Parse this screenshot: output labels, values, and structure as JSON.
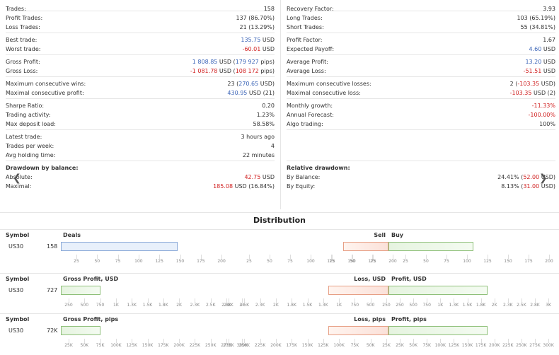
{
  "stats_left": [
    [
      {
        "label": "Trades:",
        "value": "158"
      }
    ],
    [
      {
        "label": "Profit Trades:",
        "value": "137 (86.70%)"
      },
      {
        "label": "Loss Trades:",
        "value": "21 (13.29%)"
      }
    ],
    [
      {
        "label": "Best trade:",
        "value": "135.75",
        "unit": " USD",
        "color": "blue"
      },
      {
        "label": "Worst trade:",
        "value": "-60.01",
        "unit": " USD",
        "color": "red"
      }
    ],
    [
      {
        "label": "Gross Profit:",
        "value_parts": [
          {
            "t": "1 808.85",
            "c": "blue"
          },
          {
            "t": " USD (",
            "c": ""
          },
          {
            "t": "179 927",
            "c": "blue"
          },
          {
            "t": " pips)",
            "c": ""
          }
        ]
      },
      {
        "label": "Gross Loss:",
        "value_parts": [
          {
            "t": "-1 081.78",
            "c": "red"
          },
          {
            "t": " USD (",
            "c": ""
          },
          {
            "t": "108 172",
            "c": "red"
          },
          {
            "t": " pips)",
            "c": ""
          }
        ]
      }
    ],
    [
      {
        "label": "Maximum consecutive wins:",
        "value_parts": [
          {
            "t": "23 (",
            "c": ""
          },
          {
            "t": "270.65",
            "c": "blue"
          },
          {
            "t": " USD)",
            "c": ""
          }
        ]
      },
      {
        "label": "Maximal consecutive profit:",
        "value_parts": [
          {
            "t": "430.95",
            "c": "blue"
          },
          {
            "t": " USD (21)",
            "c": ""
          }
        ]
      }
    ],
    [
      {
        "label": "Sharpe Ratio:",
        "value": "0.20"
      },
      {
        "label": "Trading activity:",
        "value": "1.23%"
      },
      {
        "label": "Max deposit load:",
        "value": "58.58%"
      }
    ],
    [
      {
        "label": "Latest trade:",
        "value": "3 hours ago"
      },
      {
        "label": "Trades per week:",
        "value": "4"
      },
      {
        "label": "Avg holding time:",
        "value": "22 minutes"
      }
    ],
    [
      {
        "label": "Drawdown by balance:",
        "value": "",
        "bold": true
      },
      {
        "label": "Absolute:",
        "value": "42.75",
        "unit": " USD",
        "color": "red"
      },
      {
        "label": "Maximal:",
        "value_parts": [
          {
            "t": "185.08",
            "c": "red"
          },
          {
            "t": " USD (16.84%)",
            "c": ""
          }
        ]
      }
    ]
  ],
  "stats_right": [
    [
      {
        "label": "Recovery Factor:",
        "value": "3.93"
      }
    ],
    [
      {
        "label": "Long Trades:",
        "value": "103 (65.19%)"
      },
      {
        "label": "Short Trades:",
        "value": "55 (34.81%)"
      }
    ],
    [
      {
        "label": "Profit Factor:",
        "value": "1.67"
      },
      {
        "label": "Expected Payoff:",
        "value": "4.60",
        "unit": " USD",
        "color": "blue"
      }
    ],
    [
      {
        "label": "Average Profit:",
        "value": "13.20",
        "unit": " USD",
        "color": "blue"
      },
      {
        "label": "Average Loss:",
        "value": "-51.51",
        "unit": " USD",
        "color": "red"
      }
    ],
    [
      {
        "label": "Maximum consecutive losses:",
        "value_parts": [
          {
            "t": "2 (",
            "c": ""
          },
          {
            "t": "-103.35",
            "c": "red"
          },
          {
            "t": " USD)",
            "c": ""
          }
        ]
      },
      {
        "label": "Maximal consecutive loss:",
        "value_parts": [
          {
            "t": "-103.35",
            "c": "red"
          },
          {
            "t": " USD (2)",
            "c": ""
          }
        ]
      }
    ],
    [
      {
        "label": "Monthly growth:",
        "value": "-11.33%",
        "color": "red"
      },
      {
        "label": "Annual Forecast:",
        "value": "-100.00%",
        "color": "red"
      },
      {
        "label": "Algo trading:",
        "value": "100%"
      }
    ],
    [],
    [
      {
        "label": "Relative drawdown:",
        "value": "",
        "bold": true
      },
      {
        "label": "By Balance:",
        "value_parts": [
          {
            "t": "24.41% (",
            "c": ""
          },
          {
            "t": "52.00",
            "c": "red"
          },
          {
            "t": " USD)",
            "c": ""
          }
        ]
      },
      {
        "label": "By Equity:",
        "value_parts": [
          {
            "t": "8.13% (",
            "c": ""
          },
          {
            "t": "31.00",
            "c": "red"
          },
          {
            "t": " USD)",
            "c": ""
          }
        ]
      }
    ]
  ],
  "distribution": {
    "title": "Distribution",
    "sections": [
      {
        "symbol_header": "Symbol",
        "symbol": "US30",
        "total": "158",
        "left_label": "Deals",
        "left_value": 158,
        "right_left_label": "Sell",
        "right_right_label": "Buy",
        "sell_value": 55,
        "buy_value": 103,
        "left_ticks": [
          "25",
          "50",
          "75",
          "100",
          "125",
          "150",
          "175",
          "200"
        ],
        "right_neg_ticks": [
          "75",
          "50",
          "25"
        ],
        "mid_ticks_left": [
          "200",
          "25",
          "50",
          "75",
          "100",
          "125",
          "150",
          "175",
          "200"
        ],
        "right_pos_ticks": [
          "25",
          "50",
          "75",
          "100",
          "125",
          "150",
          "175",
          "200"
        ]
      },
      {
        "symbol_header": "Symbol",
        "symbol": "US30",
        "total": "727",
        "left_label": "Gross Profit, USD",
        "left_value": 727,
        "right_left_label": "Loss, USD",
        "right_right_label": "Profit, USD",
        "left_ticks": [
          "250",
          "500",
          "750",
          "1K",
          "1.3K",
          "1.5K",
          "1.8K",
          "2K",
          "2.3K",
          "2.5K",
          "2.8K",
          "3K"
        ],
        "mid_ticks": [
          "2.8K",
          "2.5K",
          "2.3K",
          "2K",
          "1.8K",
          "1.5K",
          "1.3K",
          "1K",
          "750",
          "500",
          "250"
        ],
        "right_pos_ticks": [
          "250",
          "500",
          "750",
          "1K",
          "1.3K",
          "1.5K",
          "1.8K",
          "2K",
          "2.3K",
          "2.5K",
          "2.8K",
          "3K"
        ]
      },
      {
        "symbol_header": "Symbol",
        "symbol": "US30",
        "total": "72K",
        "left_label": "Gross Profit, pips",
        "left_value": 72,
        "right_left_label": "Loss, pips",
        "right_right_label": "Profit, pips",
        "left_ticks": [
          "25K",
          "50K",
          "75K",
          "100K",
          "125K",
          "150K",
          "175K",
          "200K",
          "225K",
          "250K",
          "275K",
          "300K"
        ],
        "mid_ticks": [
          "275K",
          "250K",
          "225K",
          "200K",
          "175K",
          "150K",
          "125K",
          "100K",
          "75K",
          "50K",
          "25K"
        ],
        "right_pos_ticks": [
          "25K",
          "50K",
          "75K",
          "100K",
          "125K",
          "150K",
          "175K",
          "200K",
          "225K",
          "250K",
          "275K",
          "300K"
        ]
      }
    ]
  }
}
